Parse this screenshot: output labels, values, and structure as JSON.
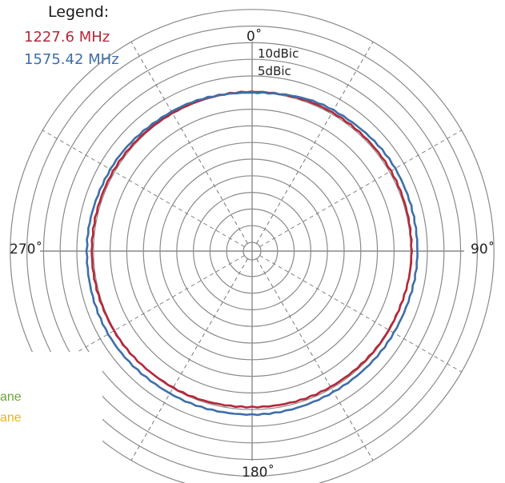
{
  "legend": {
    "title": "Legend:",
    "items": [
      {
        "label": "1227.6 MHz",
        "color": "#b5283a"
      },
      {
        "label": "1575.42 MHz",
        "color": "#3e6fa8"
      }
    ]
  },
  "plane_labels": [
    {
      "text": "ane",
      "color": "#6aa53a"
    },
    {
      "text": "ane",
      "color": "#e3b81a"
    }
  ],
  "angle_labels": {
    "top": "0˚",
    "right": "90˚",
    "bottom": "180˚",
    "left": "270˚"
  },
  "ring_labels": {
    "outer": "10dBic",
    "inner": "5dBic"
  },
  "chart_data": {
    "type": "polar-line",
    "radial_labels_printed": [
      "10dBic",
      "5dBic"
    ],
    "angle_ticks_deg": [
      0,
      90,
      180,
      270
    ],
    "spoke_step_deg": 30,
    "ring_count": 14,
    "grid": true,
    "legend_position": "top-left",
    "series": [
      {
        "name": "1227.6 MHz",
        "color": "#b5283a",
        "angle_deg": [
          0,
          30,
          60,
          90,
          120,
          150,
          180,
          210,
          240,
          270,
          300,
          330
        ],
        "r_rings": [
          9.05,
          9.1,
          9.1,
          9.05,
          8.95,
          8.9,
          8.85,
          8.95,
          9.05,
          9.1,
          9.1,
          9.05
        ]
      },
      {
        "name": "1575.42 MHz",
        "color": "#3e6fa8",
        "angle_deg": [
          0,
          30,
          60,
          90,
          120,
          150,
          180,
          210,
          240,
          270,
          300,
          330
        ],
        "r_rings": [
          9.0,
          9.25,
          9.4,
          9.4,
          9.3,
          9.25,
          9.3,
          9.35,
          9.45,
          9.4,
          9.3,
          9.15
        ]
      }
    ]
  }
}
